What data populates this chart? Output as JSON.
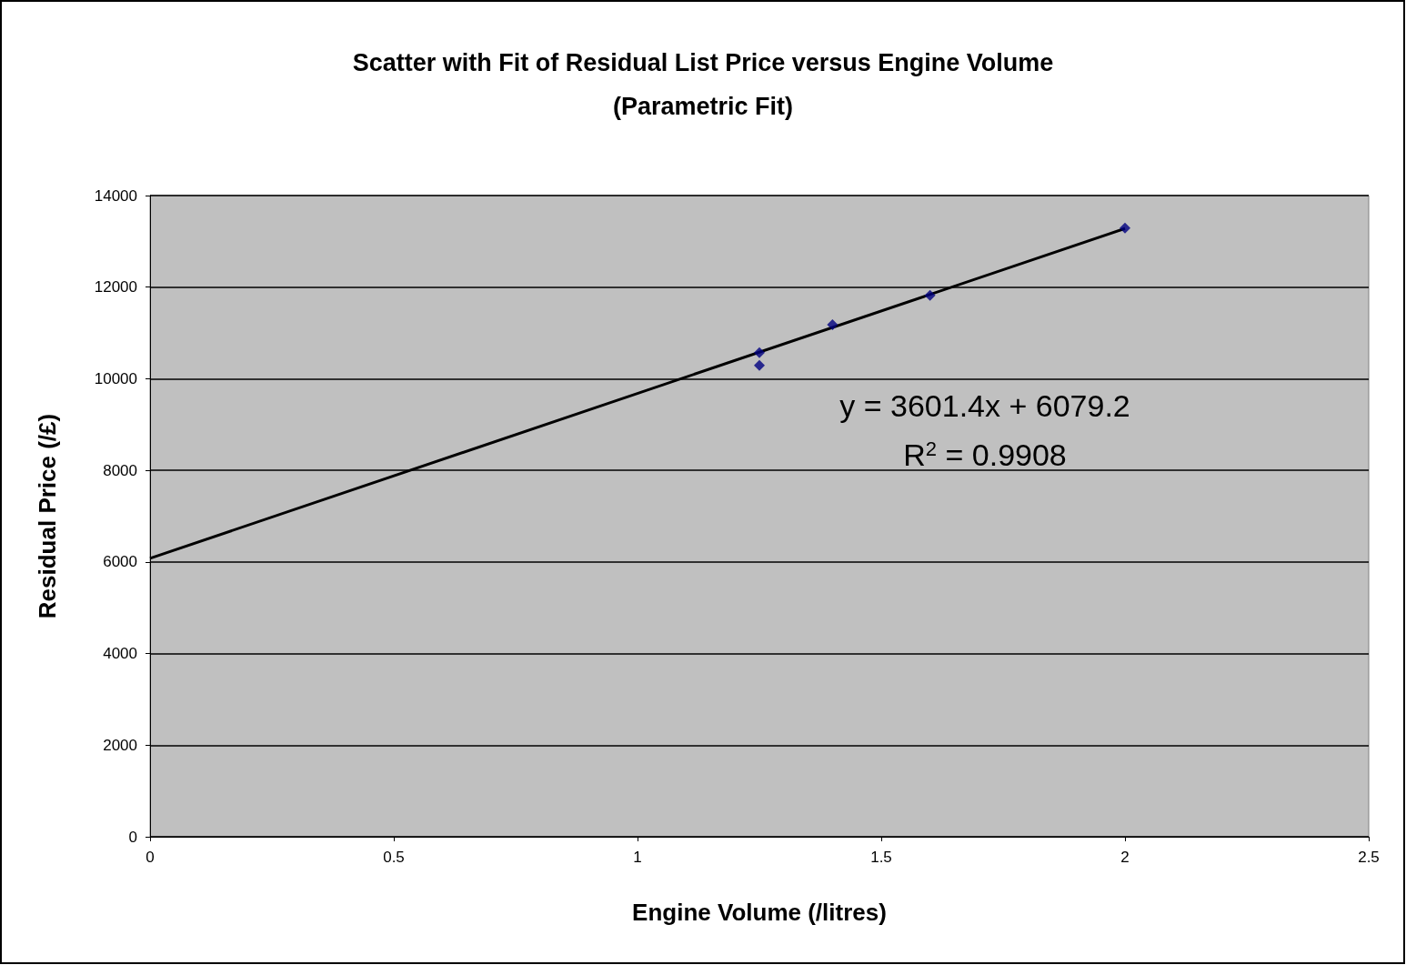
{
  "chart_data": {
    "type": "scatter",
    "title": "Scatter with Fit of Residual List Price versus Engine Volume\n(Parametric Fit)",
    "xlabel": "Engine Volume (/litres)",
    "ylabel": "Residual Price (/£)",
    "xlim": [
      0,
      2.5
    ],
    "xticks": [
      0,
      0.5,
      1,
      1.5,
      2,
      2.5
    ],
    "ylim": [
      0,
      14000
    ],
    "yticks": [
      0,
      2000,
      4000,
      6000,
      8000,
      10000,
      12000,
      14000
    ],
    "grid": "y",
    "series": [
      {
        "color": "#000080",
        "marker": "diamond",
        "x": [
          1.25,
          1.25,
          1.4,
          1.6,
          2
        ],
        "values": [
          10570,
          10290,
          11180,
          11820,
          13290
        ]
      },
      {
        "type": "line",
        "color": "#000000",
        "marker": "none",
        "line_style": "solid",
        "x": [
          0,
          2
        ],
        "values": [
          6080,
          13280
        ]
      }
    ],
    "annotations": [
      "y = 3601.4x + 6079.2",
      "R$^{2}$ = 0.9908"
    ]
  }
}
